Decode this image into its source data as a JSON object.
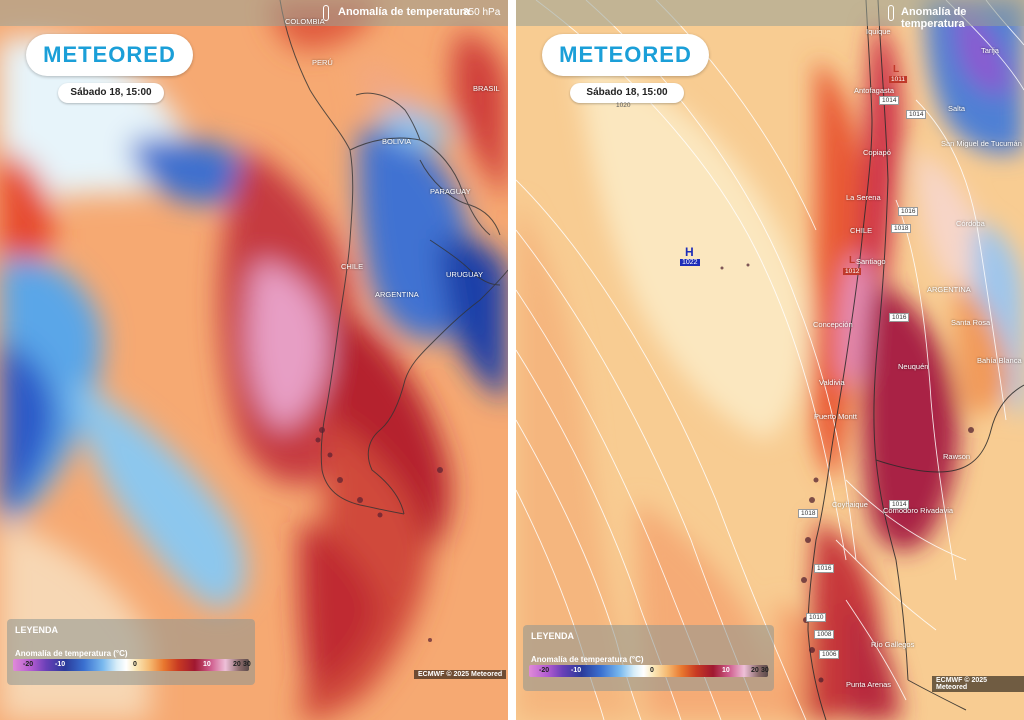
{
  "left_panel": {
    "layer_title": "Anomalía de temperatura",
    "level": "850 hPa",
    "logo": "METEORED",
    "datetime": "Sábado 18, 15:00",
    "legend": {
      "title": "LEYENDA",
      "subtitle": "Anomalía de temperatura (°C)",
      "ticks": [
        "-20",
        "-10",
        "0",
        "10",
        "20",
        "30"
      ]
    },
    "copyright": "ECMWF © 2025 Meteored",
    "place_labels": [
      "PERÚ",
      "BRASIL",
      "BOLIVIA",
      "PARAGUAY",
      "CHILE",
      "ARGENTINA",
      "URUGUAY",
      "COLOMBIA"
    ]
  },
  "right_panel": {
    "layer_title": "Anomalía de temperatura",
    "logo": "METEORED",
    "datetime": "Sábado 18, 15:00",
    "isobar_top": "1020",
    "high": {
      "letter": "H",
      "value": "1022"
    },
    "lows": [
      {
        "letter": "L",
        "value": "1011"
      },
      {
        "letter": "L",
        "value": "1012"
      }
    ],
    "isobar_labels": [
      "1014",
      "1016",
      "1018",
      "1016",
      "1016",
      "1014",
      "1018",
      "1016",
      "1010",
      "1006",
      "1008"
    ],
    "place_labels": [
      "Iquique",
      "Antofagasta",
      "Salta",
      "San Miguel de Tucumán",
      "Copiapó",
      "La Serena",
      "Córdoba",
      "CHILE",
      "Santiago",
      "ARGENTINA",
      "Concepción",
      "Santa Rosa",
      "Neuquén",
      "Valdivia",
      "Bahía Blanca",
      "Puerto Montt",
      "Rawson",
      "Coyhaique",
      "Comodoro Rivadavia",
      "Río Gallegos",
      "Punta Arenas",
      "Tarija"
    ],
    "legend": {
      "title": "LEYENDA",
      "subtitle": "Anomalía de temperatura (°C)",
      "ticks": [
        "-20",
        "-10",
        "0",
        "10",
        "20",
        "30"
      ]
    },
    "copyright": "ECMWF © 2025 Meteored"
  }
}
